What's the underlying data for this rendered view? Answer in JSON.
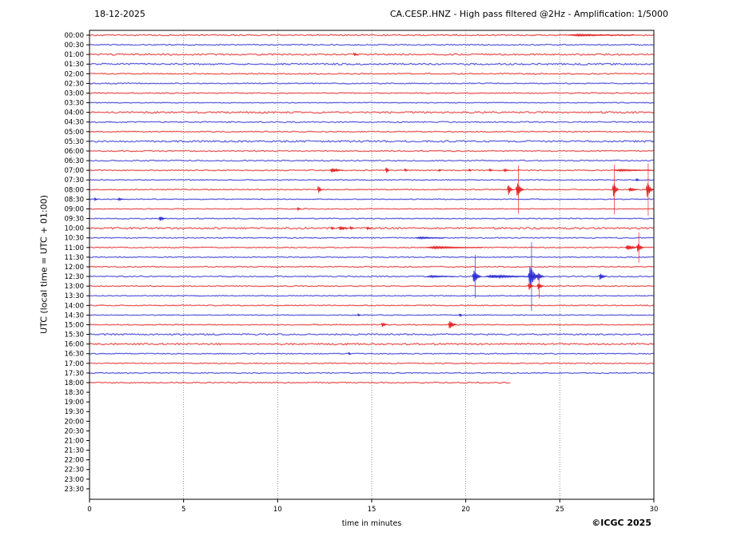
{
  "header": {
    "date": "18-12-2025",
    "title": "CA.CESP..HNZ - High pass filtered @2Hz - Amplification: 1/5000"
  },
  "footer": {
    "copyright": "©ICGC 2025"
  },
  "chart_data": {
    "type": "line",
    "subtype": "helicorder-seismogram",
    "date": "18-12-2025",
    "title": "CA.CESP..HNZ - High pass filtered @2Hz - Amplification: 1/5000",
    "xlabel": "time in minutes",
    "ylabel": "UTC (local time = UTC + 01:00)",
    "xlim": [
      0,
      30
    ],
    "xticks": [
      0,
      5,
      10,
      15,
      20,
      25,
      30
    ],
    "grid_minutes": [
      5,
      10,
      15,
      20,
      25
    ],
    "grid_style": "dotted-vertical",
    "minutes_per_row": 30,
    "colors": {
      "hour_trace": "#e32222",
      "half_hour_trace": "#2a2ad2",
      "grid": "#777777",
      "frame": "#000000",
      "text": "#000000"
    },
    "rows": [
      {
        "label": "00:00",
        "color": "red",
        "trace": true,
        "noise": 0.7
      },
      {
        "label": "00:30",
        "color": "blue",
        "trace": true,
        "noise": 0.6
      },
      {
        "label": "01:00",
        "color": "red",
        "trace": true,
        "noise": 0.9
      },
      {
        "label": "01:30",
        "color": "blue",
        "trace": true,
        "noise": 1.0
      },
      {
        "label": "02:00",
        "color": "red",
        "trace": true,
        "noise": 0.7
      },
      {
        "label": "02:30",
        "color": "blue",
        "trace": true,
        "noise": 0.6
      },
      {
        "label": "03:00",
        "color": "red",
        "trace": true,
        "noise": 0.6
      },
      {
        "label": "03:30",
        "color": "blue",
        "trace": true,
        "noise": 0.5
      },
      {
        "label": "04:00",
        "color": "red",
        "trace": true,
        "noise": 1.0
      },
      {
        "label": "04:30",
        "color": "blue",
        "trace": true,
        "noise": 0.7
      },
      {
        "label": "05:00",
        "color": "red",
        "trace": true,
        "noise": 0.6
      },
      {
        "label": "05:30",
        "color": "blue",
        "trace": true,
        "noise": 1.0
      },
      {
        "label": "06:00",
        "color": "red",
        "trace": true,
        "noise": 0.6
      },
      {
        "label": "06:30",
        "color": "blue",
        "trace": true,
        "noise": 0.6
      },
      {
        "label": "07:00",
        "color": "red",
        "trace": true,
        "noise": 0.55
      },
      {
        "label": "07:30",
        "color": "blue",
        "trace": true,
        "noise": 0.55
      },
      {
        "label": "08:00",
        "color": "red",
        "trace": true,
        "noise": 0.55
      },
      {
        "label": "08:30",
        "color": "blue",
        "trace": true,
        "noise": 0.5
      },
      {
        "label": "09:00",
        "color": "red",
        "trace": true,
        "noise": 0.5
      },
      {
        "label": "09:30",
        "color": "blue",
        "trace": true,
        "noise": 0.55
      },
      {
        "label": "10:00",
        "color": "red",
        "trace": true,
        "noise": 1.0
      },
      {
        "label": "10:30",
        "color": "blue",
        "trace": true,
        "noise": 0.6
      },
      {
        "label": "11:00",
        "color": "red",
        "trace": true,
        "noise": 0.55
      },
      {
        "label": "11:30",
        "color": "blue",
        "trace": true,
        "noise": 0.5
      },
      {
        "label": "12:00",
        "color": "red",
        "trace": true,
        "noise": 0.55
      },
      {
        "label": "12:30",
        "color": "blue",
        "trace": true,
        "noise": 0.6
      },
      {
        "label": "13:00",
        "color": "red",
        "trace": true,
        "noise": 0.55
      },
      {
        "label": "13:30",
        "color": "blue",
        "trace": true,
        "noise": 0.5
      },
      {
        "label": "14:00",
        "color": "red",
        "trace": true,
        "noise": 0.55
      },
      {
        "label": "14:30",
        "color": "blue",
        "trace": true,
        "noise": 0.5
      },
      {
        "label": "15:00",
        "color": "red",
        "trace": true,
        "noise": 0.55
      },
      {
        "label": "15:30",
        "color": "blue",
        "trace": true,
        "noise": 0.9
      },
      {
        "label": "16:00",
        "color": "red",
        "trace": true,
        "noise": 1.0
      },
      {
        "label": "16:30",
        "color": "blue",
        "trace": true,
        "noise": 0.6
      },
      {
        "label": "17:00",
        "color": "red",
        "trace": true,
        "noise": 0.55
      },
      {
        "label": "17:30",
        "color": "blue",
        "trace": true,
        "noise": 0.6
      },
      {
        "label": "18:00",
        "color": "red",
        "trace": true,
        "noise": 0.55,
        "end_minute": 22.4
      },
      {
        "label": "18:30",
        "color": "blue",
        "trace": false,
        "noise": 0
      },
      {
        "label": "19:00",
        "color": "red",
        "trace": false,
        "noise": 0
      },
      {
        "label": "19:30",
        "color": "blue",
        "trace": false,
        "noise": 0
      },
      {
        "label": "20:00",
        "color": "red",
        "trace": false,
        "noise": 0
      },
      {
        "label": "20:30",
        "color": "blue",
        "trace": false,
        "noise": 0
      },
      {
        "label": "21:00",
        "color": "red",
        "trace": false,
        "noise": 0
      },
      {
        "label": "21:30",
        "color": "blue",
        "trace": false,
        "noise": 0
      },
      {
        "label": "22:00",
        "color": "red",
        "trace": false,
        "noise": 0
      },
      {
        "label": "22:30",
        "color": "blue",
        "trace": false,
        "noise": 0
      },
      {
        "label": "23:00",
        "color": "red",
        "trace": false,
        "noise": 0
      },
      {
        "label": "23:30",
        "color": "blue",
        "trace": false,
        "noise": 0
      }
    ],
    "events": [
      {
        "row": "00:00",
        "minute": 26.5,
        "amp": 1,
        "width": 3.5
      },
      {
        "row": "01:00",
        "minute": 14.1,
        "amp": 2,
        "width": 0.25
      },
      {
        "row": "07:00",
        "minute": 13.0,
        "amp": 2.5,
        "width": 0.7
      },
      {
        "row": "07:00",
        "minute": 15.8,
        "amp": 4,
        "width": 0.2
      },
      {
        "row": "07:00",
        "minute": 16.8,
        "amp": 1.5,
        "width": 0.2
      },
      {
        "row": "07:00",
        "minute": 18.6,
        "amp": 1.5,
        "width": 0.15
      },
      {
        "row": "07:00",
        "minute": 20.2,
        "amp": 1.2,
        "width": 0.15
      },
      {
        "row": "07:00",
        "minute": 21.3,
        "amp": 1.5,
        "width": 0.2
      },
      {
        "row": "07:00",
        "minute": 22.1,
        "amp": 1.8,
        "width": 0.3
      },
      {
        "row": "07:00",
        "minute": 28.5,
        "amp": 1,
        "width": 2
      },
      {
        "row": "07:30",
        "minute": 29.1,
        "amp": 1.5,
        "width": 0.2
      },
      {
        "row": "08:00",
        "minute": 12.2,
        "amp": 5,
        "width": 0.25
      },
      {
        "row": "08:00",
        "minute": 22.3,
        "amp": 7,
        "width": 0.3
      },
      {
        "row": "08:00",
        "minute": 22.8,
        "amp": 30,
        "width": 0.45,
        "tall": true
      },
      {
        "row": "08:00",
        "minute": 27.9,
        "amp": 31,
        "width": 0.35,
        "tall": true
      },
      {
        "row": "08:00",
        "minute": 28.8,
        "amp": 2.5,
        "width": 0.5
      },
      {
        "row": "08:00",
        "minute": 29.7,
        "amp": 33,
        "width": 0.4,
        "tall": true
      },
      {
        "row": "08:30",
        "minute": 0.3,
        "amp": 1.5,
        "width": 0.2
      },
      {
        "row": "08:30",
        "minute": 1.6,
        "amp": 1.5,
        "width": 0.3
      },
      {
        "row": "09:00",
        "minute": 11.1,
        "amp": 1.5,
        "width": 0.2
      },
      {
        "row": "09:30",
        "minute": 3.8,
        "amp": 3,
        "width": 0.35
      },
      {
        "row": "10:00",
        "minute": 12.9,
        "amp": 2,
        "width": 0.2
      },
      {
        "row": "10:00",
        "minute": 13.4,
        "amp": 2.5,
        "width": 0.5
      },
      {
        "row": "10:00",
        "minute": 13.9,
        "amp": 2,
        "width": 0.2
      },
      {
        "row": "10:00",
        "minute": 14.8,
        "amp": 1.5,
        "width": 0.3
      },
      {
        "row": "10:30",
        "minute": 17.8,
        "amp": 1,
        "width": 1.5
      },
      {
        "row": "11:00",
        "minute": 18.8,
        "amp": 1.2,
        "width": 3
      },
      {
        "row": "11:00",
        "minute": 28.7,
        "amp": 3,
        "width": 0.7
      },
      {
        "row": "11:00",
        "minute": 29.2,
        "amp": 19,
        "width": 0.4,
        "tall": true
      },
      {
        "row": "12:30",
        "minute": 18.4,
        "amp": 1,
        "width": 1.5
      },
      {
        "row": "12:30",
        "minute": 20.5,
        "amp": 27,
        "width": 0.5,
        "tall": true
      },
      {
        "row": "12:30",
        "minute": 21.8,
        "amp": 1.8,
        "width": 2.5
      },
      {
        "row": "12:30",
        "minute": 23.5,
        "amp": 43,
        "width": 0.6,
        "tall": true
      },
      {
        "row": "12:30",
        "minute": 23.9,
        "amp": 5,
        "width": 0.4
      },
      {
        "row": "12:30",
        "minute": 27.2,
        "amp": 4,
        "width": 0.4
      },
      {
        "row": "13:00",
        "minute": 23.4,
        "amp": 5,
        "width": 0.3
      },
      {
        "row": "13:00",
        "minute": 23.9,
        "amp": 15,
        "width": 0.35,
        "tall": true
      },
      {
        "row": "14:30",
        "minute": 14.3,
        "amp": 1.5,
        "width": 0.15
      },
      {
        "row": "14:30",
        "minute": 19.7,
        "amp": 2,
        "width": 0.15
      },
      {
        "row": "15:00",
        "minute": 15.6,
        "amp": 3,
        "width": 0.3
      },
      {
        "row": "15:00",
        "minute": 19.2,
        "amp": 5,
        "width": 0.45
      },
      {
        "row": "16:30",
        "minute": 13.8,
        "amp": 1.2,
        "width": 0.15
      }
    ]
  }
}
